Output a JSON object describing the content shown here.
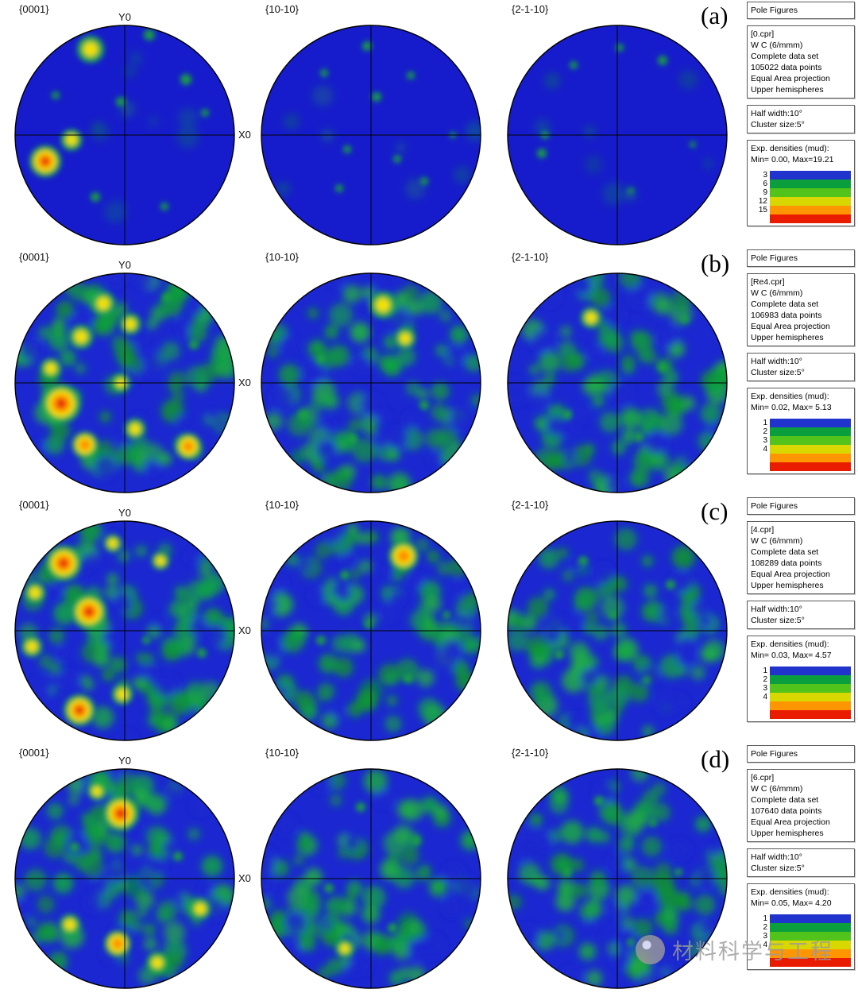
{
  "panel_title": "Pole Figures",
  "watermark": {
    "text": "材料科学与工程"
  },
  "chart_data": {
    "type": "heatmap",
    "subtype": "pole-figure-grid",
    "projection": "Equal Area projection",
    "hemisphere": "Upper hemispheres",
    "pole_titles": [
      "{0001}",
      "{10-10}",
      "{2-1-10}"
    ],
    "axis_labels": {
      "y": "Y0",
      "x": "X0"
    },
    "rows": [
      {
        "tag": "(a)",
        "info": [
          "[0.cpr]",
          "W C (6/mmm)",
          "Complete data set",
          "105022 data points",
          "Equal Area projection",
          "Upper hemispheres"
        ],
        "params": [
          "Half width:10°",
          "Cluster size:5°"
        ],
        "densities": [
          "Exp. densities (mud):",
          "Min= 0.00, Max=19.21"
        ],
        "scale": [
          [
            "3",
            "#2033cc"
          ],
          [
            "6",
            "#0a9f3c"
          ],
          [
            "9",
            "#52c31b"
          ],
          [
            "12",
            "#d8d800"
          ],
          [
            "15",
            "#ff9500"
          ],
          [
            "",
            "#ea1c00"
          ]
        ],
        "figures": [
          {
            "seed": 11,
            "base": "#161ccb",
            "mottle": 10,
            "mottleOp": 0.3,
            "holes": 0,
            "spots": [
              [
                112,
                62,
                9,
                "y"
              ],
              [
                150,
                128,
                6,
                "g"
              ],
              [
                186,
                44,
                7,
                "g"
              ],
              [
                232,
                100,
                7,
                "g"
              ],
              [
                256,
                142,
                5,
                "g"
              ],
              [
                55,
                203,
                8,
                "r"
              ],
              [
                88,
                176,
                7,
                "y"
              ],
              [
                118,
                248,
                6,
                "g"
              ],
              [
                205,
                260,
                5,
                "g"
              ],
              [
                68,
                120,
                5,
                "g"
              ]
            ]
          },
          {
            "seed": 12,
            "base": "#161ccb",
            "mottle": 8,
            "mottleOp": 0.3,
            "holes": 0,
            "spots": [
              [
                150,
                58,
                6,
                "g"
              ],
              [
                96,
                92,
                5,
                "g"
              ],
              [
                205,
                95,
                5,
                "g"
              ],
              [
                162,
                122,
                6,
                "g"
              ],
              [
                125,
                188,
                5,
                "g"
              ],
              [
                188,
                200,
                5,
                "g"
              ],
              [
                115,
                237,
                5,
                "g"
              ],
              [
                222,
                228,
                5,
                "g"
              ],
              [
                258,
                170,
                4,
                "g"
              ]
            ]
          },
          {
            "seed": 13,
            "base": "#161ccb",
            "mottle": 8,
            "mottleOp": 0.3,
            "holes": 0,
            "spots": [
              [
                212,
                76,
                6,
                "g"
              ],
              [
                158,
                60,
                5,
                "g"
              ],
              [
                100,
                82,
                5,
                "g"
              ],
              [
                60,
                193,
                6,
                "g"
              ],
              [
                64,
                170,
                5,
                "g"
              ],
              [
                172,
                240,
                4,
                "g"
              ],
              [
                250,
                182,
                4,
                "g"
              ]
            ]
          }
        ]
      },
      {
        "tag": "(b)",
        "info": [
          "[Re4.cpr]",
          "W C (6/mmm)",
          "Complete data set",
          "106983 data points",
          "Equal Area projection",
          "Upper hemispheres"
        ],
        "params": [
          "Half width:10°",
          "Cluster size:5°"
        ],
        "densities": [
          "Exp. densities (mud):",
          "Min= 0.02, Max= 5.13"
        ],
        "scale": [
          [
            "1",
            "#2033cc"
          ],
          [
            "2",
            "#0a9f3c"
          ],
          [
            "3",
            "#52c31b"
          ],
          [
            "4",
            "#d8d800"
          ],
          [
            "",
            "#ff9500"
          ],
          [
            "",
            "#ea1c00"
          ]
        ],
        "figures": [
          {
            "seed": 21,
            "base": "#1b27d0",
            "mottle": 78,
            "mottleOp": 0.9,
            "holes": 20,
            "spots": [
              [
                75,
                196,
                10,
                "r"
              ],
              [
                100,
                112,
                8,
                "y"
              ],
              [
                128,
                70,
                8,
                "y"
              ],
              [
                162,
                96,
                7,
                "y"
              ],
              [
                62,
                152,
                7,
                "y"
              ],
              [
                105,
                248,
                8,
                "o"
              ],
              [
                168,
                228,
                7,
                "y"
              ],
              [
                235,
                250,
                8,
                "o"
              ],
              [
                208,
                62,
                6,
                "g"
              ],
              [
                242,
                122,
                6,
                "g"
              ],
              [
                150,
                170,
                6,
                "y"
              ]
            ]
          },
          {
            "seed": 22,
            "base": "#1b27d0",
            "mottle": 78,
            "mottleOp": 0.9,
            "holes": 20,
            "spots": [
              [
                170,
                72,
                9,
                "y"
              ],
              [
                198,
                114,
                7,
                "y"
              ],
              [
                92,
                140,
                6,
                "g"
              ],
              [
                222,
                198,
                6,
                "g"
              ],
              [
                132,
                240,
                6,
                "g"
              ],
              [
                70,
                210,
                6,
                "g"
              ]
            ]
          },
          {
            "seed": 23,
            "base": "#1b27d0",
            "mottle": 78,
            "mottleOp": 0.9,
            "holes": 20,
            "spots": [
              [
                122,
                88,
                7,
                "y"
              ],
              [
                212,
                150,
                6,
                "g"
              ],
              [
                92,
                210,
                6,
                "g"
              ],
              [
                182,
                238,
                6,
                "g"
              ],
              [
                240,
                90,
                5,
                "g"
              ]
            ]
          }
        ]
      },
      {
        "tag": "(c)",
        "info": [
          "[4.cpr]",
          "W C (6/mmm)",
          "Complete data set",
          "108289 data points",
          "Equal Area projection",
          "Upper hemispheres"
        ],
        "params": [
          "Half width:10°",
          "Cluster size:5°"
        ],
        "densities": [
          "Exp. densities (mud):",
          "Min= 0.03, Max= 4.57"
        ],
        "scale": [
          [
            "1",
            "#2033cc"
          ],
          [
            "2",
            "#0a9f3c"
          ],
          [
            "3",
            "#52c31b"
          ],
          [
            "4",
            "#d8d800"
          ],
          [
            "",
            "#ff9500"
          ],
          [
            "",
            "#ea1c00"
          ]
        ],
        "figures": [
          {
            "seed": 31,
            "base": "#1b27d0",
            "mottle": 78,
            "mottleOp": 0.9,
            "holes": 20,
            "spots": [
              [
                78,
                85,
                9,
                "r"
              ],
              [
                110,
                146,
                9,
                "r"
              ],
              [
                98,
                270,
                8,
                "r"
              ],
              [
                42,
                122,
                7,
                "y"
              ],
              [
                38,
                190,
                7,
                "y"
              ],
              [
                152,
                250,
                7,
                "y"
              ],
              [
                200,
                82,
                6,
                "y"
              ],
              [
                252,
                198,
                6,
                "g"
              ],
              [
                182,
                182,
                5,
                "g"
              ],
              [
                140,
                60,
                6,
                "y"
              ]
            ]
          },
          {
            "seed": 32,
            "base": "#1b27d0",
            "mottle": 78,
            "mottleOp": 0.9,
            "holes": 20,
            "spots": [
              [
                196,
                76,
                9,
                "o"
              ],
              [
                122,
                100,
                6,
                "g"
              ],
              [
                92,
                182,
                6,
                "g"
              ],
              [
                202,
                230,
                6,
                "g"
              ],
              [
                152,
                162,
                5,
                "g"
              ],
              [
                250,
                150,
                5,
                "g"
              ]
            ]
          },
          {
            "seed": 33,
            "base": "#1b27d0",
            "mottle": 78,
            "mottleOp": 0.9,
            "holes": 20,
            "spots": [
              [
                112,
                82,
                6,
                "g"
              ],
              [
                222,
                112,
                6,
                "g"
              ],
              [
                82,
                200,
                6,
                "g"
              ],
              [
                192,
                232,
                5,
                "g"
              ],
              [
                150,
                150,
                5,
                "g"
              ]
            ]
          }
        ]
      },
      {
        "tag": "(d)",
        "info": [
          "[6.cpr]",
          "W C (6/mmm)",
          "Complete data set",
          "107640 data points",
          "Equal Area projection",
          "Upper hemispheres"
        ],
        "params": [
          "Half width:10°",
          "Cluster size:5°"
        ],
        "densities": [
          "Exp. densities (mud):",
          "Min= 0.05, Max= 4.20"
        ],
        "scale": [
          [
            "1",
            "#2033cc"
          ],
          [
            "2",
            "#0a9f3c"
          ],
          [
            "3",
            "#52c31b"
          ],
          [
            "4",
            "#d8d800"
          ],
          [
            "",
            "#ff9500"
          ],
          [
            "",
            "#ea1c00"
          ]
        ],
        "figures": [
          {
            "seed": 41,
            "base": "#1b27d0",
            "mottle": 78,
            "mottleOp": 0.9,
            "holes": 20,
            "spots": [
              [
                150,
                88,
                9,
                "r"
              ],
              [
                146,
                252,
                8,
                "o"
              ],
              [
                250,
                208,
                7,
                "y"
              ],
              [
                86,
                228,
                7,
                "y"
              ],
              [
                196,
                276,
                7,
                "y"
              ],
              [
                92,
                130,
                6,
                "g"
              ],
              [
                222,
                142,
                6,
                "g"
              ],
              [
                120,
                60,
                6,
                "y"
              ]
            ]
          },
          {
            "seed": 42,
            "base": "#1b27d0",
            "mottle": 78,
            "mottleOp": 0.9,
            "holes": 20,
            "spots": [
              [
                142,
                80,
                6,
                "g"
              ],
              [
                212,
                122,
                6,
                "g"
              ],
              [
                102,
                182,
                6,
                "g"
              ],
              [
                182,
                232,
                6,
                "g"
              ],
              [
                122,
                258,
                6,
                "y"
              ],
              [
                240,
                180,
                5,
                "g"
              ]
            ]
          },
          {
            "seed": 43,
            "base": "#1b27d0",
            "mottle": 78,
            "mottleOp": 0.9,
            "holes": 20,
            "spots": [
              [
                132,
                72,
                6,
                "g"
              ],
              [
                232,
                162,
                5,
                "g"
              ],
              [
                92,
                162,
                6,
                "g"
              ],
              [
                172,
                250,
                5,
                "g"
              ],
              [
                200,
                100,
                5,
                "g"
              ]
            ]
          }
        ]
      }
    ]
  }
}
